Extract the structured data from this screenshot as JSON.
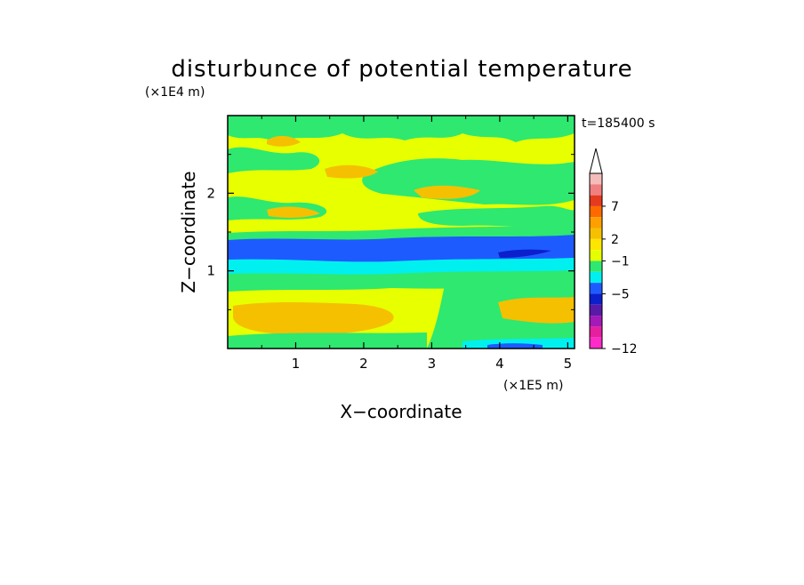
{
  "chart_data": {
    "type": "heatmap",
    "title": "disturbunce of potential temperature",
    "xlabel": "X−coordinate",
    "ylabel": "Z−coordinate",
    "x_unit": "(×1E5 m)",
    "y_unit": "(×1E4 m)",
    "time_label": "t=185400 s",
    "x_ticks": [
      "1",
      "2",
      "3",
      "4",
      "5"
    ],
    "y_ticks": [
      "1",
      "2"
    ],
    "xlim": [
      0,
      5.1
    ],
    "ylim": [
      0,
      3.0
    ],
    "colorbar": {
      "labels": [
        "7",
        "2",
        "−1",
        "−5",
        "−12"
      ],
      "colors": [
        "#f5bcbc",
        "#f08080",
        "#e63a1e",
        "#ff6a00",
        "#ff9f00",
        "#f5c000",
        "#ffe600",
        "#e6ff00",
        "#2ee870",
        "#00f0f0",
        "#1e5bff",
        "#0b1fcc",
        "#5a1aa8",
        "#a31ab8",
        "#e61ea0",
        "#ff2bc8"
      ],
      "extend": "max"
    },
    "fill_colors": {
      "background": "#e8ff00",
      "green": "#2ee870",
      "orange": "#f5c000",
      "cyan": "#00f0f0",
      "blue": "#1e5bff",
      "dark_blue": "#0b1fcc"
    },
    "grid": false
  }
}
